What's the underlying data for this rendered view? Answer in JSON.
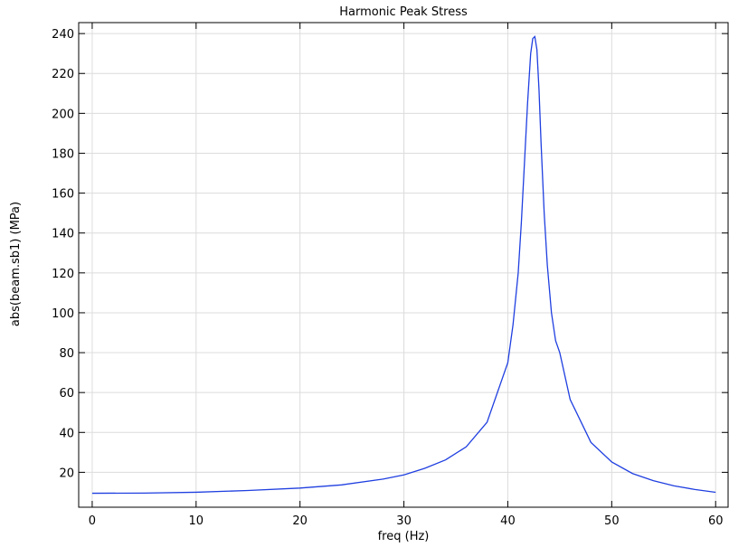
{
  "chart_data": {
    "type": "line",
    "title": "Harmonic Peak Stress",
    "xlabel": "freq (Hz)",
    "ylabel": "abs(beam.sb1) (MPa)",
    "xlim": [
      -1.3,
      61.2
    ],
    "ylim": [
      2.5,
      245.5
    ],
    "xticks": [
      0,
      10,
      20,
      30,
      40,
      50,
      60
    ],
    "yticks": [
      20,
      40,
      60,
      80,
      100,
      120,
      140,
      160,
      180,
      200,
      220,
      240
    ],
    "grid": true,
    "series": [
      {
        "color": "#1f3fe0",
        "x": [
          0,
          5,
          10,
          15,
          20,
          24,
          28,
          30,
          32,
          34,
          36,
          38,
          40,
          40.5,
          41,
          41.3,
          41.6,
          41.9,
          42.2,
          42.4,
          42.6,
          42.8,
          43.0,
          43.2,
          43.5,
          43.8,
          44.2,
          44.6,
          45,
          46,
          48,
          50,
          52,
          54,
          56,
          58,
          60
        ],
        "y": [
          9.5,
          9.6,
          10.0,
          10.9,
          12.1,
          13.7,
          16.6,
          18.7,
          22.0,
          26.2,
          32.8,
          45.1,
          75.0,
          94.0,
          120.0,
          145.0,
          175.0,
          205.0,
          230.0,
          237.5,
          238.5,
          232.0,
          212.0,
          185.0,
          150.0,
          124.0,
          100.0,
          86.0,
          80.0,
          56.5,
          35.0,
          25.2,
          19.4,
          15.8,
          13.2,
          11.4,
          10.0
        ]
      }
    ]
  }
}
